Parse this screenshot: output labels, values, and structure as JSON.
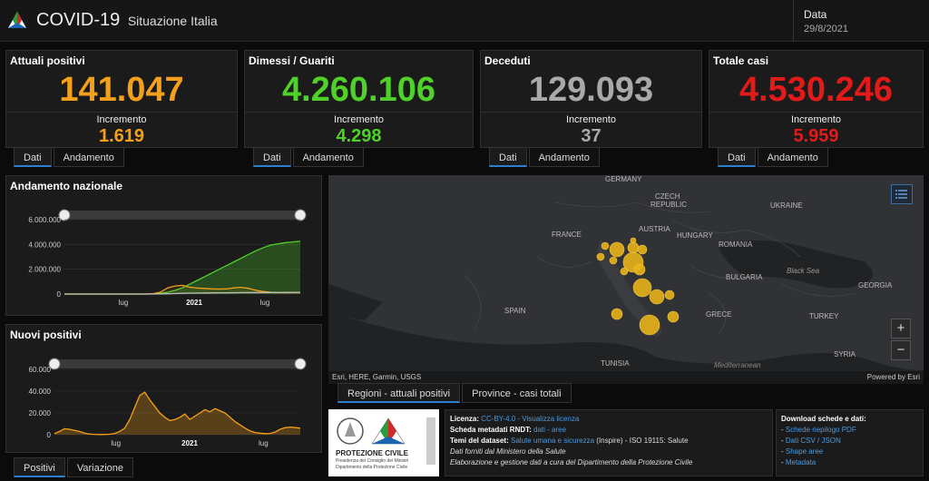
{
  "header": {
    "title": "COVID-19",
    "subtitle": "Situazione Italia",
    "date_label": "Data",
    "date_value": "29/8/2021"
  },
  "cards": [
    {
      "title": "Attuali positivi",
      "value": "141.047",
      "inc_label": "Incremento",
      "inc_value": "1.619",
      "color": "#f5a01a"
    },
    {
      "title": "Dimessi / Guariti",
      "value": "4.260.106",
      "inc_label": "Incremento",
      "inc_value": "4.298",
      "color": "#4fd12a"
    },
    {
      "title": "Deceduti",
      "value": "129.093",
      "inc_label": "Incremento",
      "inc_value": "37",
      "color": "#a9a9a9"
    },
    {
      "title": "Totale casi",
      "value": "4.530.246",
      "inc_label": "Incremento",
      "inc_value": "5.959",
      "color": "#e31a1a"
    }
  ],
  "card_tabs": {
    "dati": "Dati",
    "andamento": "Andamento"
  },
  "andamento": {
    "title": "Andamento nazionale",
    "chart_data": {
      "type": "area",
      "yticks": [
        "6.000.000",
        "4.000.000",
        "2.000.000",
        "0"
      ],
      "xticks": [
        "lug",
        "2021",
        "lug"
      ],
      "ylim": [
        0,
        6000000
      ],
      "series": [
        {
          "color": "#4fd12a",
          "values": [
            0,
            0,
            0,
            0,
            0,
            0,
            0,
            0,
            0,
            0,
            0,
            0,
            20000,
            60000,
            150000,
            300000,
            500000,
            800000,
            1100000,
            1400000,
            1700000,
            2000000,
            2300000,
            2600000,
            2900000,
            3200000,
            3500000,
            3750000,
            3950000,
            4050000,
            4150000,
            4200000,
            4260000
          ]
        },
        {
          "color": "#f5a01a",
          "values": [
            0,
            0,
            0,
            0,
            0,
            0,
            0,
            0,
            0,
            0,
            0,
            0,
            30000,
            150000,
            500000,
            650000,
            700000,
            550000,
            480000,
            450000,
            420000,
            400000,
            420000,
            500000,
            540000,
            450000,
            300000,
            200000,
            150000,
            120000,
            110000,
            120000,
            141000
          ]
        },
        {
          "color": "#bbbbbb",
          "values": [
            0,
            0,
            0,
            0,
            0,
            0,
            0,
            0,
            0,
            0,
            0,
            0,
            0,
            5000,
            20000,
            40000,
            60000,
            70000,
            80000,
            90000,
            95000,
            100000,
            105000,
            110000,
            115000,
            120000,
            124000,
            126000,
            127000,
            128000,
            128500,
            129000,
            129093
          ]
        }
      ]
    }
  },
  "nuovi": {
    "title": "Nuovi positivi",
    "chart_data": {
      "type": "area",
      "yticks": [
        "60.000",
        "40.000",
        "20.000",
        "0"
      ],
      "xticks": [
        "lug",
        "2021",
        "lug"
      ],
      "ylim": [
        0,
        60000
      ],
      "series": [
        {
          "color": "#f5a01a",
          "values": [
            1000,
            3000,
            5500,
            5000,
            4000,
            3000,
            1500,
            600,
            300,
            200,
            250,
            400,
            1200,
            3000,
            6000,
            14000,
            25000,
            36000,
            39000,
            32000,
            26000,
            20000,
            16000,
            13000,
            14000,
            16000,
            19000,
            14000,
            17000,
            20000,
            23000,
            21000,
            24000,
            22000,
            20000,
            16000,
            12000,
            9000,
            6000,
            3500,
            2000,
            1400,
            1000,
            1200,
            2500,
            5000,
            6500,
            7000,
            6500,
            6000
          ]
        }
      ]
    }
  },
  "nuovi_tabs": {
    "positivi": "Positivi",
    "variazione": "Variazione"
  },
  "map": {
    "labels": [
      "GERMANY",
      "CZECH",
      "REPUBLIC",
      "FRANCE",
      "AUSTRIA",
      "HUNGARY",
      "UKRAINE",
      "ROMANIA",
      "BULGARIA",
      "Black Sea",
      "GEORGIA",
      "SPAIN",
      "GRECE",
      "TURKEY",
      "SYRIA",
      "TUNISIA",
      "Mediterranean"
    ],
    "attribution": "Esri, HERE, Garmin, USGS",
    "powered": "Powered by Esri",
    "zoom_in": "+",
    "zoom_out": "−"
  },
  "map_tabs": {
    "regioni": "Regioni - attuali positivi",
    "province": "Province - casi totali"
  },
  "logo_text": {
    "line1": "PROTEZIONE CIVILE",
    "line2": "Presidenza del Consiglio dei Ministri",
    "line3": "Dipartimento della Protezione Civile"
  },
  "info": {
    "licenza_label": "Licenza:",
    "licenza_value": "CC-BY-4.0 - Visualizza licenza",
    "scheda_label": "Scheda metadati RNDT:",
    "scheda_value": "dati - aree",
    "temi_label": "Temi del dataset:",
    "temi_link": "Salute umana e sicurezza",
    "temi_rest": "(Inspire) - ISO 19115:",
    "temi_iso": "Salute",
    "line4": "Dati forniti dal Ministero della Salute",
    "line5": "Elaborazione e gestione dati a cura del Dipartimento della Protezione Civile"
  },
  "downloads": {
    "title": "Download schede e dati:",
    "items": [
      "Schede riepilogo PDF",
      "Dati CSV / JSON",
      "Shape aree",
      "Metadata"
    ]
  }
}
